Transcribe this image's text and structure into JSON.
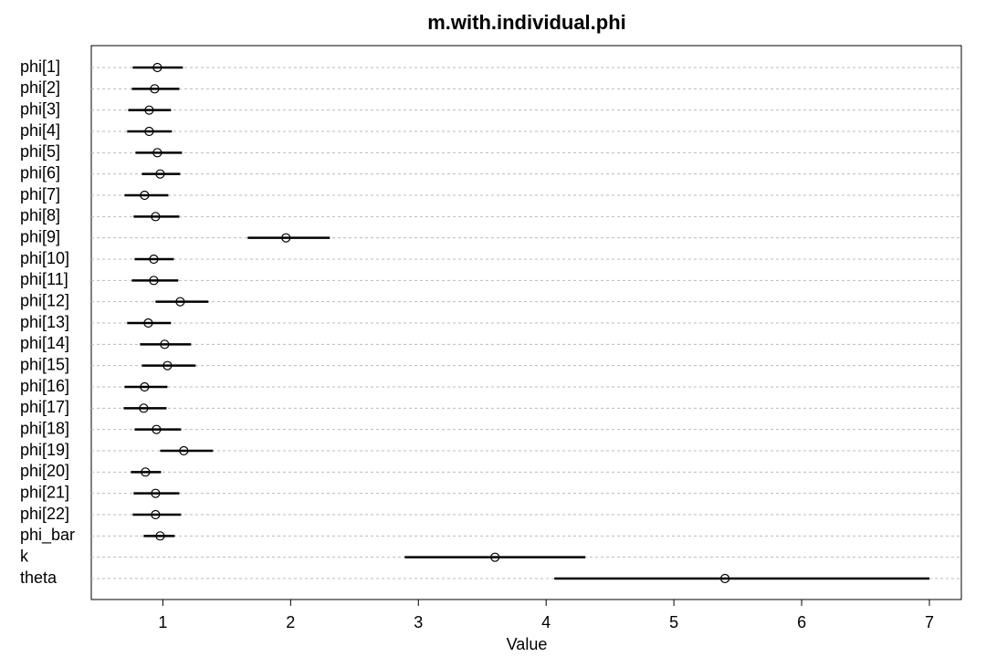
{
  "chart_data": {
    "type": "dotplot",
    "title": "m.with.individual.phi",
    "x_label": "Value",
    "categories": [
      "phi[1]",
      "phi[2]",
      "phi[3]",
      "phi[4]",
      "phi[5]",
      "phi[6]",
      "phi[7]",
      "phi[8]",
      "phi[9]",
      "phi[10]",
      "phi[11]",
      "phi[12]",
      "phi[13]",
      "phi[14]",
      "phi[15]",
      "phi[16]",
      "phi[17]",
      "phi[18]",
      "phi[19]",
      "phi[20]",
      "phi[21]",
      "phi[22]",
      "phi_bar",
      "k",
      "theta"
    ],
    "values": [
      0.957,
      0.936,
      0.893,
      0.893,
      0.957,
      0.979,
      0.857,
      0.943,
      1.964,
      0.929,
      0.929,
      1.136,
      0.886,
      1.014,
      1.036,
      0.857,
      0.85,
      0.95,
      1.164,
      0.864,
      0.943,
      0.943,
      0.979,
      3.6,
      5.4
    ],
    "lower": [
      0.764,
      0.757,
      0.729,
      0.721,
      0.786,
      0.836,
      0.7,
      0.771,
      1.664,
      0.779,
      0.757,
      0.943,
      0.721,
      0.821,
      0.836,
      0.7,
      0.693,
      0.779,
      0.979,
      0.75,
      0.771,
      0.764,
      0.85,
      2.893,
      4.064
    ],
    "upper": [
      1.157,
      1.129,
      1.064,
      1.071,
      1.15,
      1.136,
      1.043,
      1.129,
      2.307,
      1.086,
      1.121,
      1.357,
      1.064,
      1.221,
      1.257,
      1.036,
      1.029,
      1.143,
      1.393,
      0.986,
      1.129,
      1.143,
      1.093,
      4.307,
      7.0
    ],
    "color": "#000000",
    "xlim": [
      0.44,
      7.25
    ],
    "xticks": [
      1,
      2,
      3,
      4,
      5,
      6,
      7
    ],
    "grid": true
  }
}
